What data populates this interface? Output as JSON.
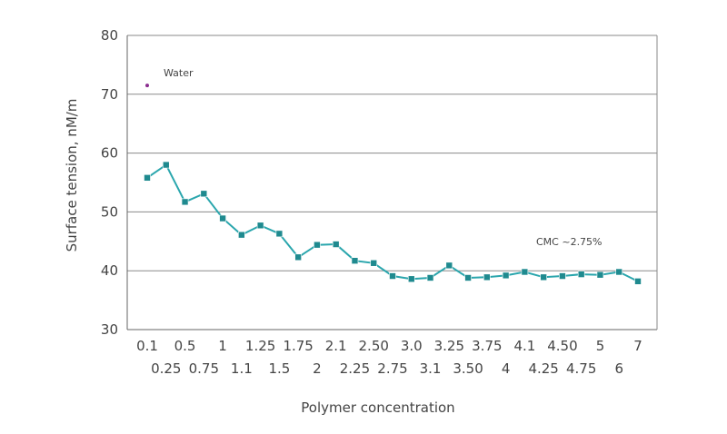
{
  "chart_data": {
    "type": "line",
    "title": "",
    "xlabel": "Polymer concentration",
    "ylabel": "Surface tension, nM/m",
    "ylim": [
      30,
      80
    ],
    "yticks": [
      "30",
      "40",
      "50",
      "60",
      "70",
      "80"
    ],
    "grid": "horizontal",
    "categories": [
      "0.1",
      "0.25",
      "0.5",
      "0.75",
      "1",
      "1.1",
      "1.25",
      "1.5",
      "1.75",
      "2",
      "2.1",
      "2.25",
      "2.50",
      "2.75",
      "3.0",
      "3.1",
      "3.25",
      "3.50",
      "3.75",
      "4",
      "4.1",
      "4.25",
      "4.50",
      "4.75",
      "5",
      "6",
      "7"
    ],
    "series": [
      {
        "values": [
          55.8,
          58.0,
          51.7,
          53.1,
          48.9,
          46.1,
          47.7,
          46.3,
          42.3,
          44.4,
          44.5,
          41.7,
          41.3,
          39.1,
          38.6,
          38.8,
          40.9,
          38.8,
          38.9,
          39.2,
          39.8,
          38.9,
          39.1,
          39.4,
          39.3,
          39.8,
          38.2
        ],
        "color": "#2aa6ad",
        "marker_color": "#1f8a8f"
      }
    ],
    "reference_point": {
      "label": "Water",
      "x": "0.1",
      "value": 71.5,
      "color": "#8b2d8f"
    },
    "annotations": [
      {
        "text": "CMC ~2.75%"
      }
    ]
  }
}
